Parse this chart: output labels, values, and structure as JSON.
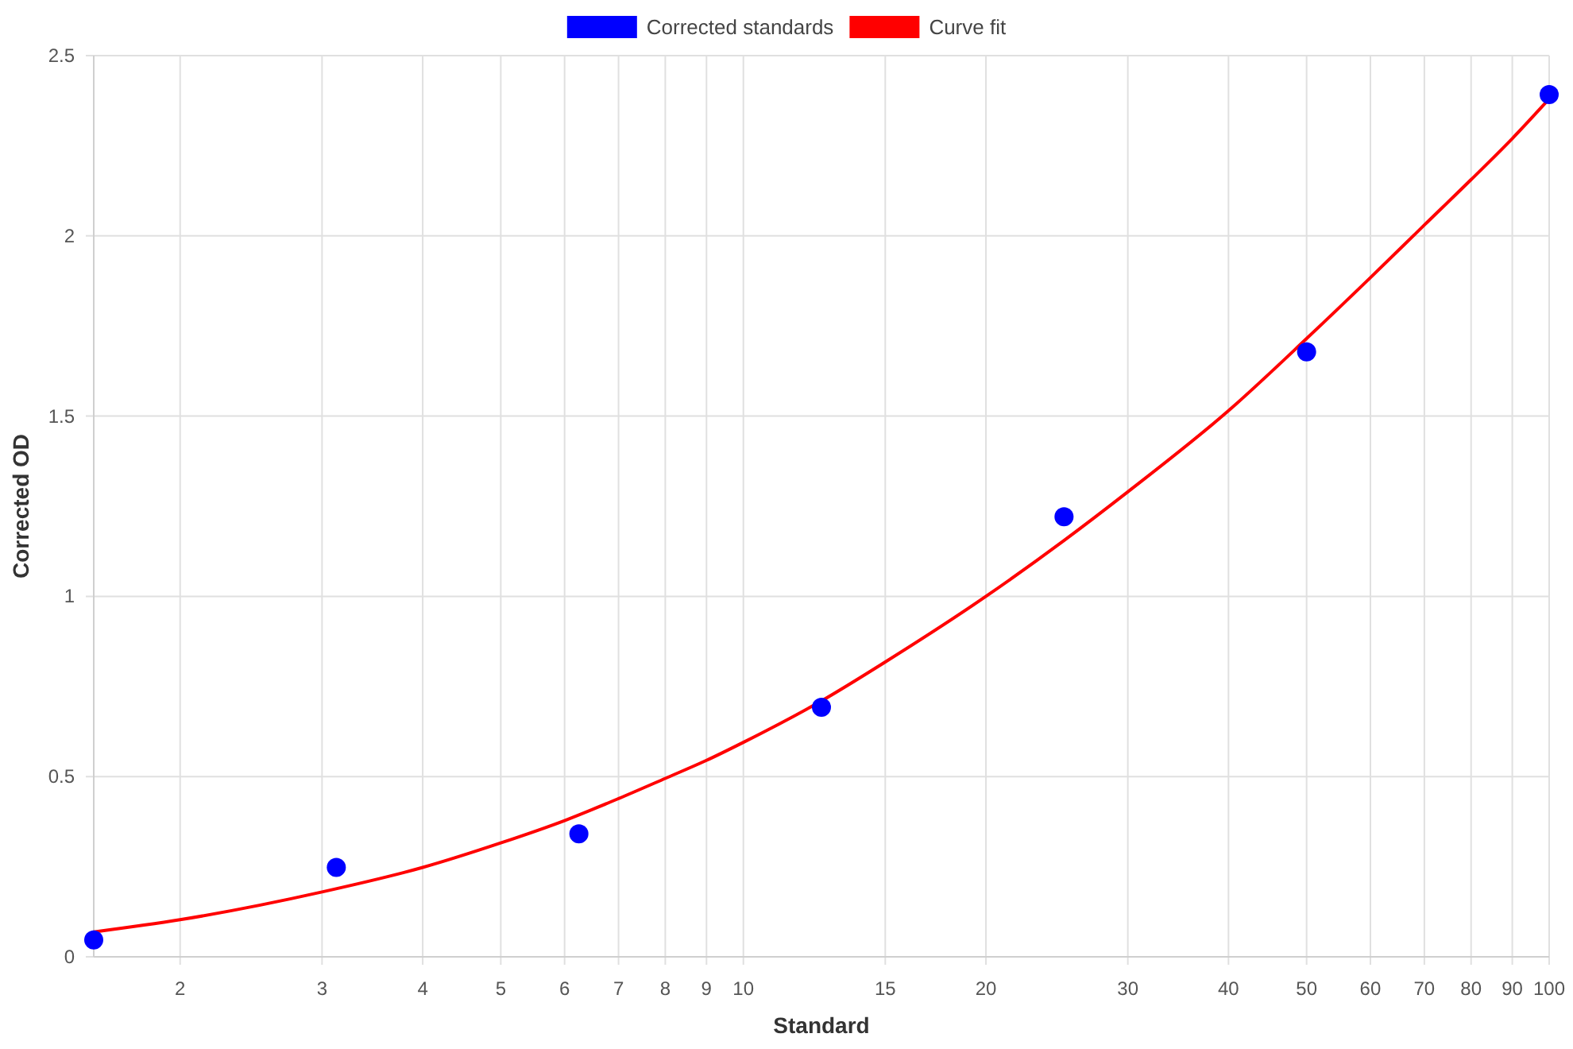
{
  "chart_data": {
    "type": "scatter",
    "xlabel": "Standard",
    "ylabel": "Corrected OD",
    "log": "x",
    "xlim": [
      1.5625,
      100
    ],
    "xticks": [
      2,
      3,
      4,
      5,
      6,
      7,
      8,
      9,
      10,
      15,
      20,
      30,
      40,
      50,
      60,
      70,
      80,
      90,
      100
    ],
    "ylim": [
      0,
      2.5
    ],
    "yticks": [
      0,
      0.5,
      1,
      1.5,
      2,
      2.5
    ],
    "grid": true,
    "legend": "top",
    "series": [
      {
        "name": "Corrected standards",
        "marker": "circle",
        "color": "#0000ff",
        "x": [
          1.5625,
          3.125,
          6.25,
          12.5,
          25,
          50,
          100
        ],
        "values": [
          0.047,
          0.248,
          0.341,
          0.692,
          1.221,
          1.678,
          2.392
        ]
      },
      {
        "name": "Curve fit",
        "type": "line",
        "marker": "none",
        "line_style": "solid",
        "color": "#ff0000",
        "x": [
          1.5625,
          2,
          3,
          4,
          5,
          6,
          7,
          8,
          9,
          10,
          12.5,
          15,
          20,
          25,
          30,
          40,
          50,
          60,
          70,
          80,
          90,
          100
        ],
        "values": [
          0.069,
          0.103,
          0.18,
          0.248,
          0.316,
          0.378,
          0.439,
          0.495,
          0.545,
          0.595,
          0.71,
          0.818,
          1.0,
          1.155,
          1.29,
          1.515,
          1.715,
          1.884,
          2.03,
          2.156,
          2.27,
          2.38
        ]
      }
    ]
  }
}
